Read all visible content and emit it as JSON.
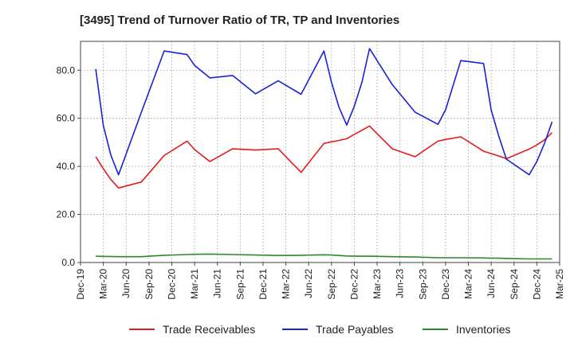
{
  "chart_data": {
    "type": "line",
    "title": "[3495]  Trend of Turnover Ratio of TR, TP and Inventories",
    "xlabel": "",
    "ylabel": "",
    "x_ticks": [
      "Dec-19",
      "Mar-20",
      "Jun-20",
      "Sep-20",
      "Dec-20",
      "Mar-21",
      "Jun-21",
      "Sep-21",
      "Dec-21",
      "Mar-22",
      "Jun-22",
      "Sep-22",
      "Dec-22",
      "Mar-23",
      "Jun-23",
      "Sep-23",
      "Dec-23",
      "Mar-24",
      "Jun-24",
      "Sep-24",
      "Dec-24",
      "Mar-25"
    ],
    "y_ticks": [
      "0.0",
      "20.0",
      "40.0",
      "60.0",
      "80.0"
    ],
    "y_tick_values": [
      0,
      20,
      40,
      60,
      80
    ],
    "ylim": [
      0,
      92
    ],
    "grid": true,
    "legend_position": "bottom",
    "x": [
      "Dec-19",
      "Jan-20",
      "Feb-20",
      "Mar-20",
      "Jun-20",
      "Sep-20",
      "Dec-20",
      "Jan-21",
      "Mar-21",
      "Jun-21",
      "Sep-21",
      "Dec-21",
      "Mar-22",
      "Jun-22",
      "Jul-22",
      "Aug-22",
      "Sep-22",
      "Oct-22",
      "Nov-22",
      "Dec-22",
      "Mar-23",
      "Jun-23",
      "Sep-23",
      "Oct-23",
      "Dec-23",
      "Mar-24",
      "Apr-24",
      "May-24",
      "Jun-24",
      "Sep-24",
      "Oct-24",
      "Nov-24",
      "Dec-24"
    ],
    "series": [
      {
        "name": "Trade Receivables",
        "color": "#e8191a",
        "values": [
          44.0,
          39.0,
          34.5,
          31.0,
          33.5,
          44.5,
          50.5,
          47.0,
          42.0,
          47.3,
          46.8,
          47.3,
          37.5,
          49.5,
          50.2,
          50.8,
          51.5,
          53.3,
          55.0,
          56.8,
          47.3,
          44.0,
          50.5,
          51.2,
          52.3,
          46.3,
          45.3,
          44.3,
          43.2,
          47.2,
          48.9,
          51.0,
          54.0
        ]
      },
      {
        "name": "Trade Payables",
        "color": "#1a22d6",
        "values": [
          80.5,
          57.0,
          44.5,
          36.5,
          62.5,
          88.0,
          86.5,
          82.0,
          76.8,
          77.8,
          70.2,
          75.6,
          70.0,
          88.0,
          75.0,
          64.5,
          57.2,
          65.0,
          75.0,
          89.0,
          74.0,
          62.5,
          57.5,
          63.5,
          84.0,
          82.8,
          63.5,
          52.5,
          43.0,
          36.5,
          42.0,
          49.5,
          58.5
        ]
      },
      {
        "name": "Inventories",
        "color": "#2a8a2a",
        "values": [
          2.6,
          2.5,
          2.5,
          2.4,
          2.4,
          3.0,
          3.3,
          3.4,
          3.5,
          3.3,
          3.1,
          2.9,
          3.0,
          3.2,
          3.1,
          2.9,
          2.7,
          2.6,
          2.6,
          2.6,
          2.4,
          2.3,
          2.0,
          2.0,
          2.0,
          1.9,
          1.8,
          1.8,
          1.7,
          1.5,
          1.5,
          1.5,
          1.5
        ]
      }
    ]
  }
}
